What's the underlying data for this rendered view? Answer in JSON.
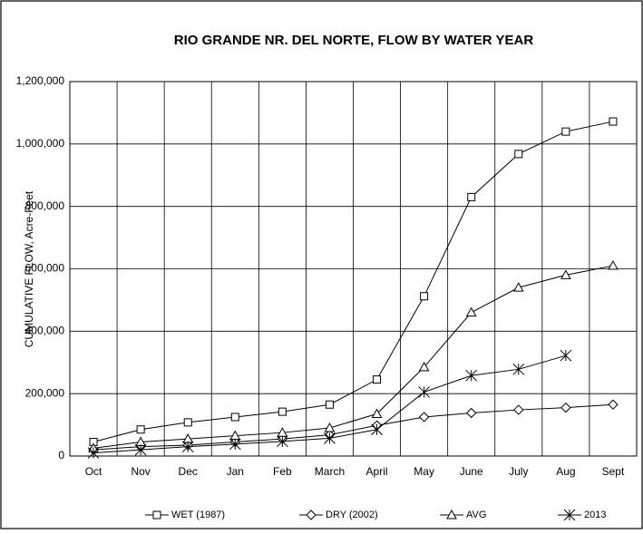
{
  "chart_data": {
    "type": "line",
    "title": "RIO GRANDE NR. DEL NORTE, FLOW BY WATER YEAR",
    "y_label": "CUMULATIVE FLOW, Acre-Feet",
    "categories": [
      "Oct",
      "Nov",
      "Dec",
      "Jan",
      "Feb",
      "March",
      "April",
      "May",
      "June",
      "July",
      "Aug",
      "Sept"
    ],
    "series": [
      {
        "name": "WET (1987)",
        "color": "#000000",
        "marker": "square",
        "values": [
          45000,
          85000,
          108000,
          125000,
          142000,
          165000,
          245000,
          512000,
          830000,
          968000,
          1040000,
          1072000
        ]
      },
      {
        "name": "DRY (2002)",
        "color": "#000000",
        "marker": "diamond",
        "values": [
          20000,
          30000,
          35000,
          45000,
          55000,
          68000,
          98000,
          125000,
          138000,
          148000,
          155000,
          165000
        ]
      },
      {
        "name": "AVG",
        "color": "#000000",
        "marker": "triangle",
        "values": [
          25000,
          45000,
          55000,
          65000,
          75000,
          90000,
          135000,
          285000,
          460000,
          540000,
          580000,
          610000
        ]
      },
      {
        "name": "2013",
        "color": "#000000",
        "marker": "star",
        "values": [
          10000,
          20000,
          30000,
          38000,
          47000,
          57000,
          85000,
          205000,
          258000,
          278000,
          322000,
          null
        ]
      }
    ],
    "ylim": [
      0,
      1200000
    ],
    "yticks": [
      0,
      {
        "value": 200000,
        "label": "200,000"
      },
      {
        "value": 400000,
        "label": "400,000"
      },
      {
        "value": 600000,
        "label": "600,000"
      },
      {
        "value": 800000,
        "label": "800,000"
      },
      {
        "value": 1000000,
        "label": "1,000,000"
      },
      {
        "value": 1200000,
        "label": "1,200,000"
      }
    ],
    "grid": true,
    "legend": "bottom"
  }
}
